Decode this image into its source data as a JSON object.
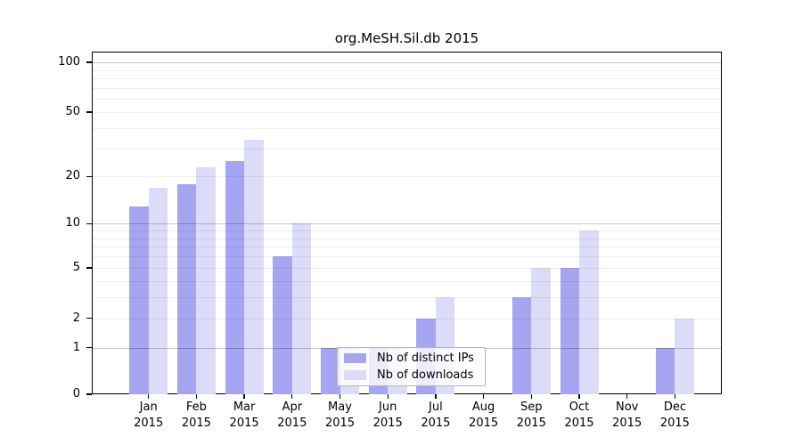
{
  "chart_data": {
    "type": "bar",
    "title": "org.MeSH.Sil.db 2015",
    "categories": [
      "Jan",
      "Feb",
      "Mar",
      "Apr",
      "May",
      "Jun",
      "Jul",
      "Aug",
      "Sep",
      "Oct",
      "Nov",
      "Dec"
    ],
    "x_tick_year": "2015",
    "series": [
      {
        "name": "Nb of distinct IPs",
        "color": "#a5a5f2",
        "values": [
          13,
          18,
          25,
          6,
          1,
          1,
          2,
          0,
          3,
          5,
          0,
          1
        ]
      },
      {
        "name": "Nb of downloads",
        "color": "#dcdcf9",
        "values": [
          17,
          23,
          34,
          10,
          1,
          1,
          3,
          0,
          5,
          9,
          0,
          2
        ]
      }
    ],
    "y_ticks": [
      0,
      1,
      2,
      5,
      10,
      20,
      50,
      100
    ],
    "y_minor_gridlines": [
      2,
      3,
      4,
      5,
      6,
      7,
      8,
      9,
      20,
      30,
      40,
      50,
      60,
      70,
      80,
      90
    ],
    "y_major_gridlines": [
      1,
      10,
      100
    ],
    "y_scale": "log1p",
    "ylim": [
      0,
      100
    ],
    "legend_position": "inside-bottom-center",
    "grid": "horizontal, minor light + major gray, drawn over bars"
  }
}
